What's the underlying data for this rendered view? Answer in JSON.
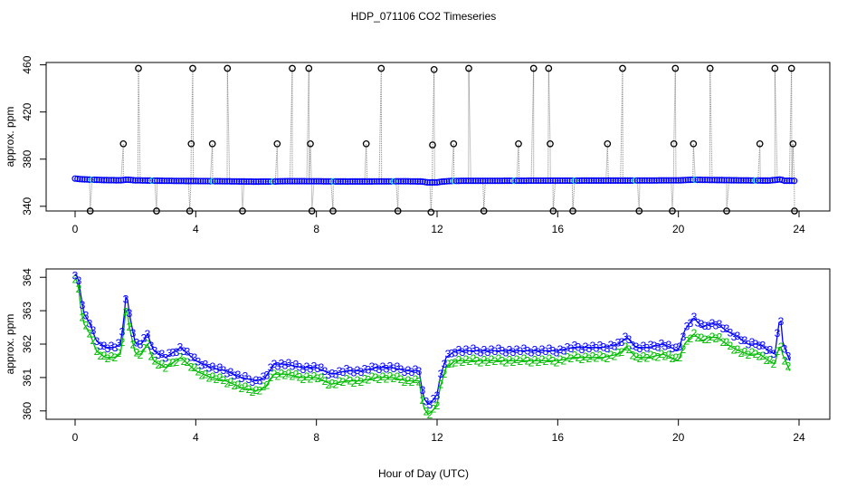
{
  "title": "HDP_071106  CO2 Timeseries",
  "xlabel": "Hour of Day (UTC)",
  "colors": {
    "blue": "#0000ff",
    "green": "#00bb00",
    "cyan": "#00c8c8",
    "gray": "#888888",
    "black": "#000000"
  },
  "chart_data": [
    {
      "type": "scatter",
      "panel": "top",
      "ylabel": "approx. ppm",
      "xlim": [
        0,
        24
      ],
      "ylim": [
        336,
        462
      ],
      "xticks": [
        "0",
        "4",
        "8",
        "12",
        "16",
        "20",
        "24"
      ],
      "yticks": [
        "340",
        "380",
        "420",
        "460"
      ],
      "baseline": [
        [
          0.0,
          363.5
        ],
        [
          0.1,
          363.2
        ],
        [
          0.3,
          362.8
        ],
        [
          0.6,
          362.5
        ],
        [
          1.0,
          362.2
        ],
        [
          1.5,
          362.0
        ],
        [
          1.7,
          362.6
        ],
        [
          2.0,
          362.0
        ],
        [
          2.5,
          361.8
        ],
        [
          3.0,
          361.6
        ],
        [
          4.0,
          361.4
        ],
        [
          5.0,
          361.2
        ],
        [
          6.0,
          360.9
        ],
        [
          6.5,
          361.0
        ],
        [
          7.0,
          361.3
        ],
        [
          8.0,
          361.2
        ],
        [
          9.0,
          361.0
        ],
        [
          10.0,
          361.1
        ],
        [
          11.0,
          361.2
        ],
        [
          11.5,
          361.0
        ],
        [
          11.7,
          360.2
        ],
        [
          12.0,
          360.3
        ],
        [
          12.2,
          361.0
        ],
        [
          12.5,
          361.5
        ],
        [
          13.0,
          361.6
        ],
        [
          14.0,
          361.6
        ],
        [
          15.0,
          361.7
        ],
        [
          16.0,
          361.7
        ],
        [
          17.0,
          361.8
        ],
        [
          18.0,
          361.8
        ],
        [
          19.0,
          361.9
        ],
        [
          20.0,
          362.0
        ],
        [
          20.5,
          362.5
        ],
        [
          21.0,
          362.3
        ],
        [
          22.0,
          362.0
        ],
        [
          23.0,
          361.8
        ],
        [
          23.4,
          362.8
        ],
        [
          23.5,
          361.7
        ],
        [
          23.8,
          361.6
        ]
      ],
      "spikes": [
        [
          0.5,
          336
        ],
        [
          1.6,
          393
        ],
        [
          2.1,
          457
        ],
        [
          2.7,
          336
        ],
        [
          3.8,
          336
        ],
        [
          3.85,
          393
        ],
        [
          3.9,
          457
        ],
        [
          4.55,
          393
        ],
        [
          5.05,
          457
        ],
        [
          5.55,
          336
        ],
        [
          6.7,
          393
        ],
        [
          7.2,
          457
        ],
        [
          7.75,
          457
        ],
        [
          7.8,
          393
        ],
        [
          7.85,
          336
        ],
        [
          8.55,
          336
        ],
        [
          9.65,
          393
        ],
        [
          10.15,
          457
        ],
        [
          10.7,
          336
        ],
        [
          11.8,
          335
        ],
        [
          11.85,
          392
        ],
        [
          11.9,
          456
        ],
        [
          12.55,
          393
        ],
        [
          13.05,
          457
        ],
        [
          13.55,
          336
        ],
        [
          14.7,
          393
        ],
        [
          15.2,
          457
        ],
        [
          15.7,
          457
        ],
        [
          15.75,
          393
        ],
        [
          15.85,
          336
        ],
        [
          16.5,
          336
        ],
        [
          17.65,
          393
        ],
        [
          18.15,
          457
        ],
        [
          18.7,
          336
        ],
        [
          19.8,
          336
        ],
        [
          19.85,
          393
        ],
        [
          19.9,
          457
        ],
        [
          20.5,
          393
        ],
        [
          21.05,
          457
        ],
        [
          21.6,
          336
        ],
        [
          22.7,
          393
        ],
        [
          23.2,
          457
        ],
        [
          23.75,
          457
        ],
        [
          23.8,
          393
        ],
        [
          23.85,
          336
        ]
      ]
    },
    {
      "type": "scatter",
      "panel": "bottom",
      "ylabel": "approx. ppm",
      "xlim": [
        0,
        24
      ],
      "ylim": [
        359.75,
        364.25
      ],
      "xticks": [
        "0",
        "4",
        "8",
        "12",
        "16",
        "20",
        "24"
      ],
      "yticks": [
        "360",
        "361",
        "362",
        "363",
        "364"
      ],
      "series": [
        {
          "name": "3",
          "symbol": "3",
          "points": [
            [
              0.0,
              364.1
            ],
            [
              0.1,
              364.0
            ],
            [
              0.2,
              363.4
            ],
            [
              0.3,
              362.9
            ],
            [
              0.5,
              362.6
            ],
            [
              0.7,
              362.1
            ],
            [
              1.0,
              361.9
            ],
            [
              1.3,
              361.9
            ],
            [
              1.5,
              362.0
            ],
            [
              1.6,
              362.6
            ],
            [
              1.7,
              363.6
            ],
            [
              1.8,
              362.9
            ],
            [
              2.0,
              362.0
            ],
            [
              2.2,
              362.0
            ],
            [
              2.4,
              362.3
            ],
            [
              2.6,
              361.8
            ],
            [
              3.0,
              361.6
            ],
            [
              3.5,
              361.9
            ],
            [
              4.0,
              361.5
            ],
            [
              4.5,
              361.3
            ],
            [
              5.0,
              361.2
            ],
            [
              5.5,
              361.0
            ],
            [
              6.0,
              360.9
            ],
            [
              6.3,
              361.0
            ],
            [
              6.6,
              361.4
            ],
            [
              7.0,
              361.4
            ],
            [
              7.5,
              361.3
            ],
            [
              8.0,
              361.3
            ],
            [
              8.5,
              361.1
            ],
            [
              9.0,
              361.2
            ],
            [
              9.5,
              361.2
            ],
            [
              10.0,
              361.3
            ],
            [
              10.5,
              361.3
            ],
            [
              11.0,
              361.2
            ],
            [
              11.4,
              361.2
            ],
            [
              11.55,
              360.4
            ],
            [
              11.7,
              360.2
            ],
            [
              11.85,
              360.3
            ],
            [
              12.0,
              360.5
            ],
            [
              12.1,
              361.0
            ],
            [
              12.3,
              361.6
            ],
            [
              12.6,
              361.8
            ],
            [
              13.0,
              361.8
            ],
            [
              13.5,
              361.8
            ],
            [
              14.0,
              361.8
            ],
            [
              14.5,
              361.8
            ],
            [
              15.0,
              361.8
            ],
            [
              15.5,
              361.8
            ],
            [
              16.0,
              361.8
            ],
            [
              16.5,
              361.9
            ],
            [
              17.0,
              361.9
            ],
            [
              17.5,
              361.9
            ],
            [
              18.0,
              362.0
            ],
            [
              18.3,
              362.2
            ],
            [
              18.6,
              361.9
            ],
            [
              19.0,
              361.9
            ],
            [
              19.5,
              362.0
            ],
            [
              20.0,
              361.8
            ],
            [
              20.2,
              362.4
            ],
            [
              20.5,
              362.8
            ],
            [
              20.8,
              362.5
            ],
            [
              21.0,
              362.6
            ],
            [
              21.3,
              362.6
            ],
            [
              21.6,
              362.4
            ],
            [
              22.0,
              362.2
            ],
            [
              22.3,
              362.0
            ],
            [
              22.7,
              362.0
            ],
            [
              23.0,
              361.8
            ],
            [
              23.2,
              361.7
            ],
            [
              23.3,
              362.4
            ],
            [
              23.38,
              362.9
            ],
            [
              23.45,
              362.1
            ],
            [
              23.6,
              361.7
            ],
            [
              23.7,
              361.5
            ]
          ]
        },
        {
          "name": "2",
          "symbol": "2",
          "points": [
            [
              0.0,
              364.0
            ],
            [
              0.1,
              363.8
            ],
            [
              0.2,
              363.0
            ],
            [
              0.3,
              362.6
            ],
            [
              0.5,
              362.3
            ],
            [
              0.7,
              361.8
            ],
            [
              1.0,
              361.6
            ],
            [
              1.3,
              361.6
            ],
            [
              1.5,
              361.7
            ],
            [
              1.6,
              362.3
            ],
            [
              1.7,
              363.2
            ],
            [
              1.8,
              362.5
            ],
            [
              2.0,
              361.7
            ],
            [
              2.2,
              361.7
            ],
            [
              2.4,
              362.0
            ],
            [
              2.6,
              361.5
            ],
            [
              3.0,
              361.3
            ],
            [
              3.5,
              361.6
            ],
            [
              4.0,
              361.2
            ],
            [
              4.5,
              361.0
            ],
            [
              5.0,
              360.9
            ],
            [
              5.5,
              360.7
            ],
            [
              6.0,
              360.6
            ],
            [
              6.3,
              360.7
            ],
            [
              6.6,
              361.1
            ],
            [
              7.0,
              361.1
            ],
            [
              7.5,
              361.0
            ],
            [
              8.0,
              361.0
            ],
            [
              8.5,
              360.8
            ],
            [
              9.0,
              360.9
            ],
            [
              9.5,
              360.9
            ],
            [
              10.0,
              361.0
            ],
            [
              10.5,
              361.0
            ],
            [
              11.0,
              360.9
            ],
            [
              11.4,
              360.9
            ],
            [
              11.55,
              360.1
            ],
            [
              11.7,
              359.9
            ],
            [
              11.85,
              360.0
            ],
            [
              12.0,
              360.2
            ],
            [
              12.1,
              360.7
            ],
            [
              12.3,
              361.3
            ],
            [
              12.6,
              361.5
            ],
            [
              13.0,
              361.5
            ],
            [
              13.5,
              361.5
            ],
            [
              14.0,
              361.5
            ],
            [
              14.5,
              361.5
            ],
            [
              15.0,
              361.5
            ],
            [
              15.5,
              361.5
            ],
            [
              16.0,
              361.5
            ],
            [
              16.5,
              361.6
            ],
            [
              17.0,
              361.6
            ],
            [
              17.5,
              361.6
            ],
            [
              18.0,
              361.7
            ],
            [
              18.3,
              361.9
            ],
            [
              18.6,
              361.6
            ],
            [
              19.0,
              361.6
            ],
            [
              19.5,
              361.7
            ],
            [
              20.0,
              361.5
            ],
            [
              20.2,
              362.0
            ],
            [
              20.5,
              362.3
            ],
            [
              20.8,
              362.1
            ],
            [
              21.0,
              362.2
            ],
            [
              21.3,
              362.2
            ],
            [
              21.6,
              362.0
            ],
            [
              22.0,
              361.8
            ],
            [
              22.3,
              361.7
            ],
            [
              22.7,
              361.7
            ],
            [
              23.0,
              361.5
            ],
            [
              23.2,
              361.4
            ],
            [
              23.3,
              361.8
            ],
            [
              23.38,
              362.0
            ],
            [
              23.45,
              361.7
            ],
            [
              23.6,
              361.4
            ],
            [
              23.7,
              361.2
            ]
          ]
        }
      ]
    }
  ]
}
